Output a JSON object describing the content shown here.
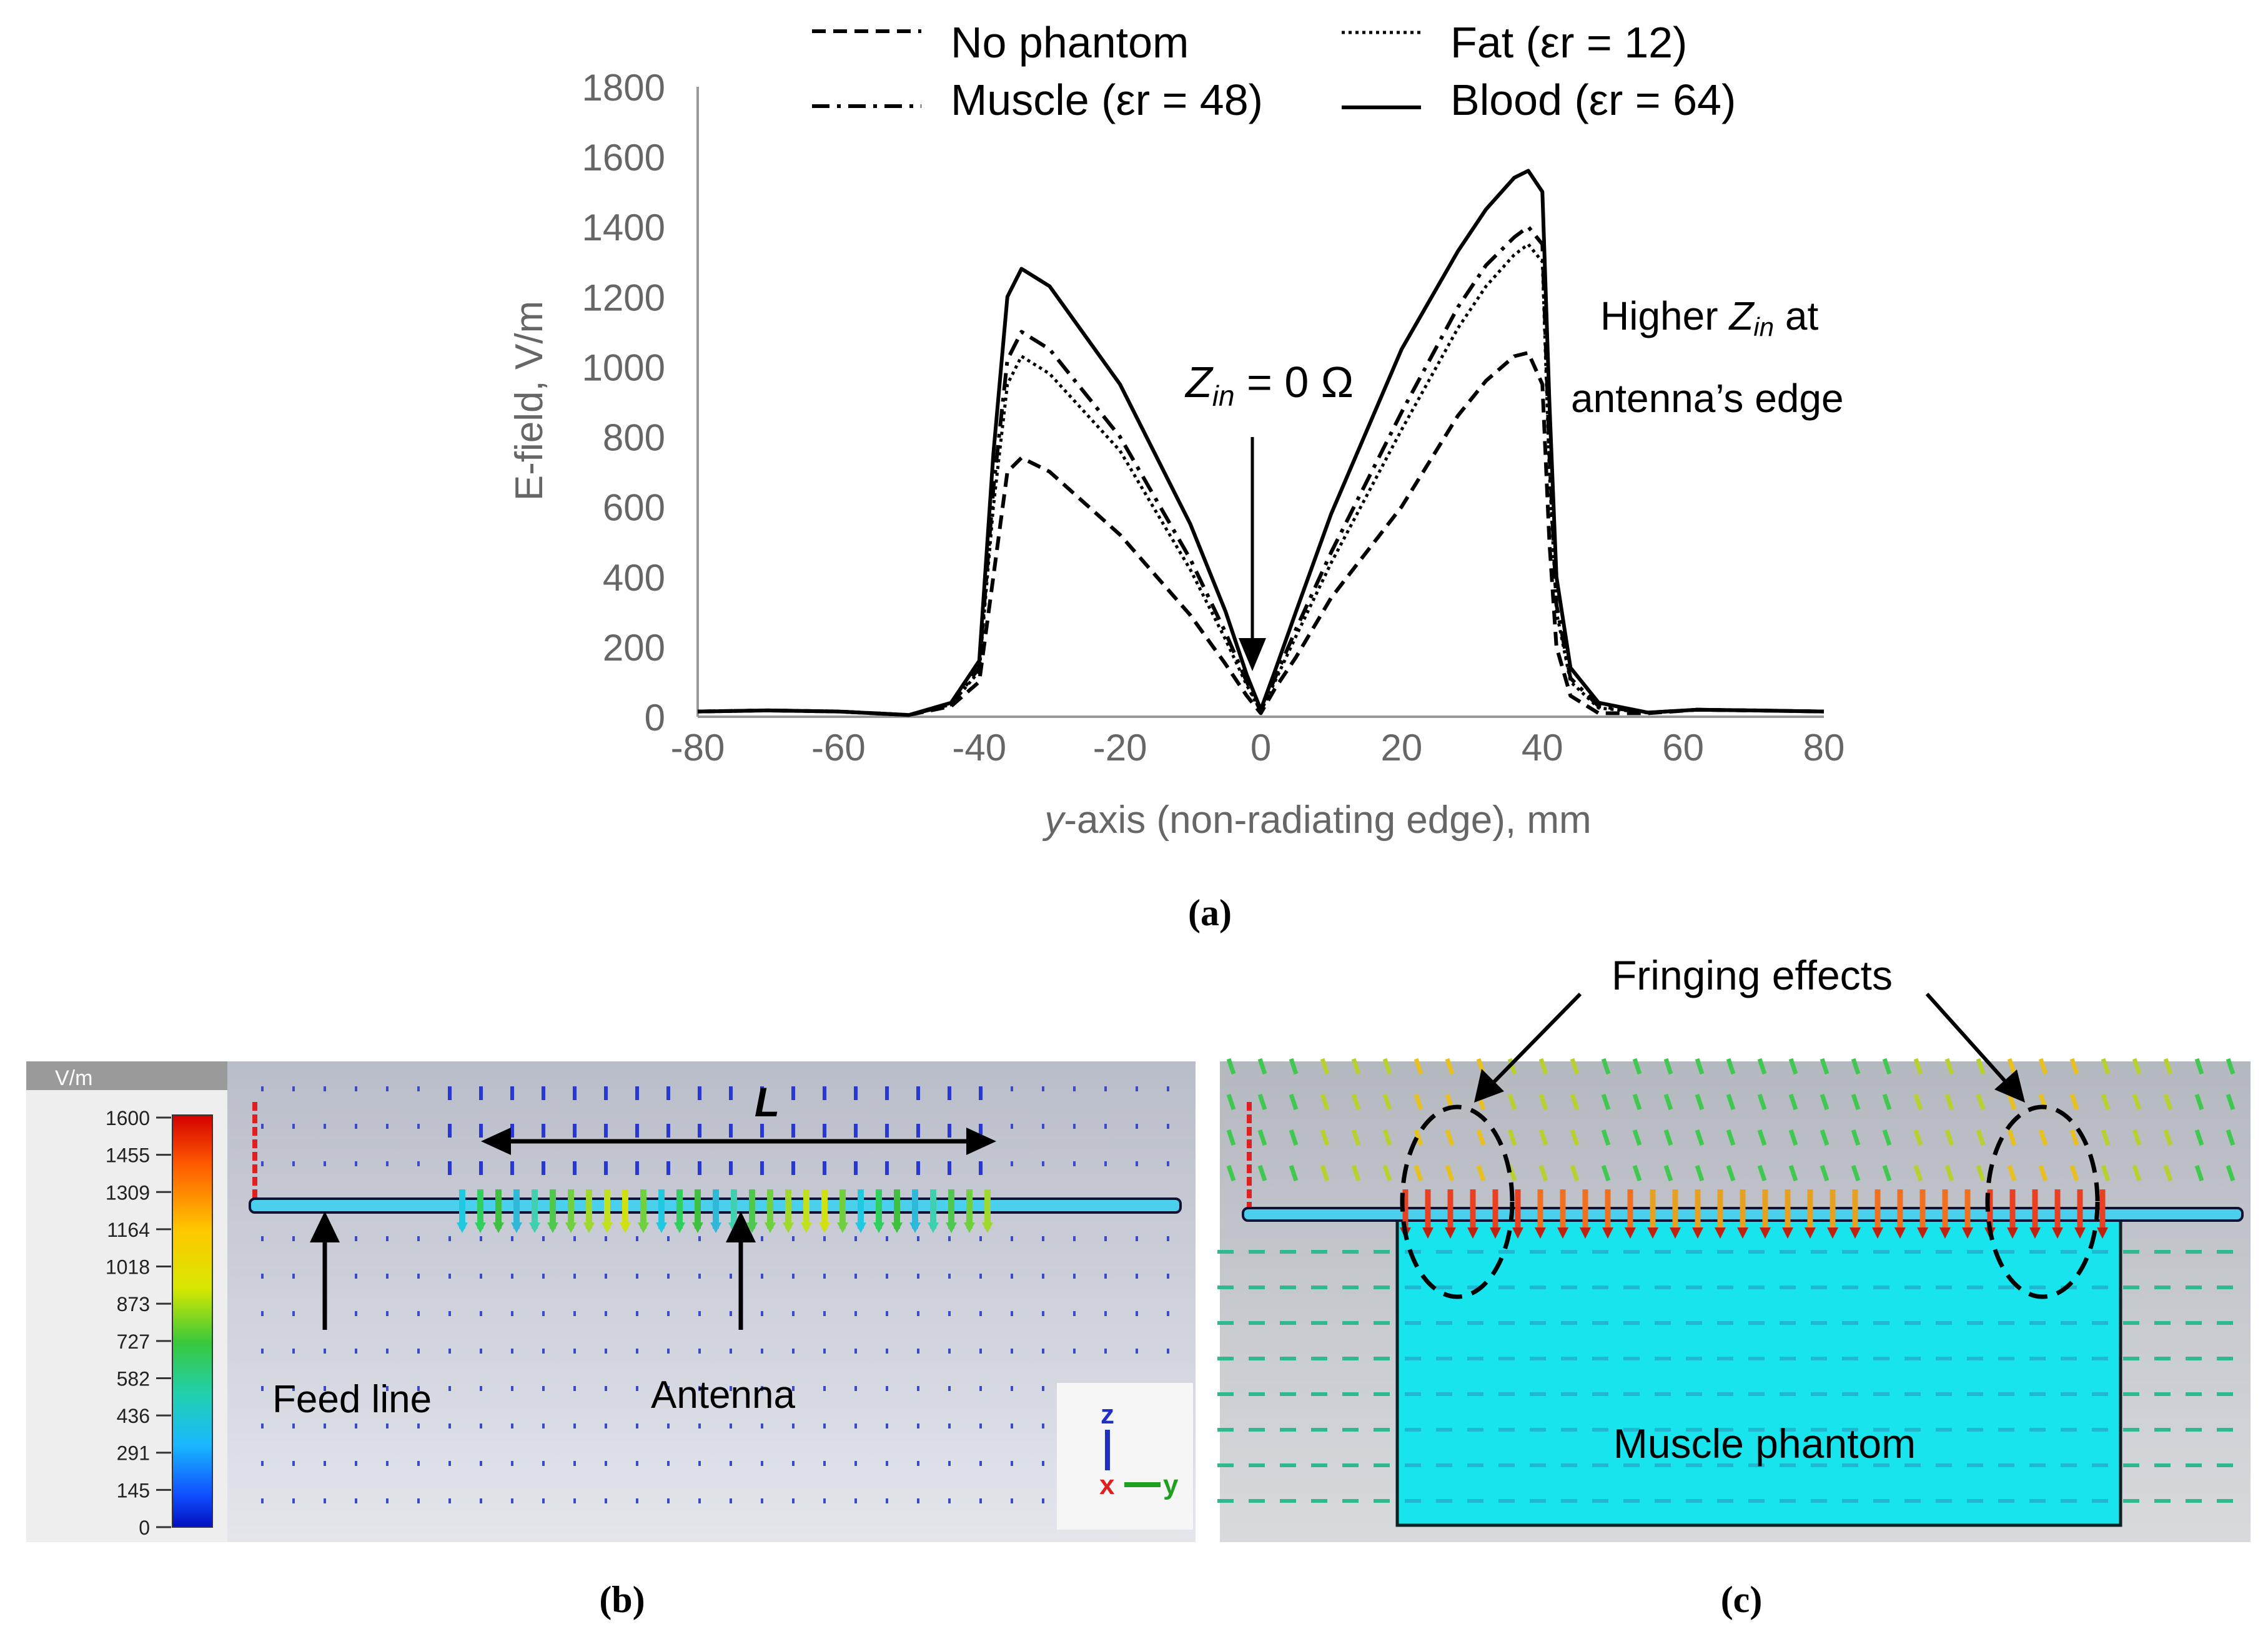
{
  "chart_data": {
    "type": "line",
    "xlabel_italic": "y",
    "xlabel_rest": "-axis (non-radiating edge), mm",
    "ylabel": "E-field, V/m",
    "xlim": [
      -80,
      80
    ],
    "ylim": [
      0,
      1800
    ],
    "x_ticks": [
      "-80",
      "-60",
      "-40",
      "-20",
      "0",
      "20",
      "40",
      "60",
      "80"
    ],
    "y_ticks": [
      "0",
      "200",
      "400",
      "600",
      "800",
      "1000",
      "1200",
      "1400",
      "1600",
      "1800"
    ],
    "legend": {
      "no_phantom": "No phantom",
      "fat": "Fat (εr = 12)",
      "muscle": "Muscle (εr = 48)",
      "blood": "Blood (εr = 64)"
    },
    "series": [
      {
        "name": "No phantom",
        "style": "dashed",
        "points": [
          [
            -80,
            15
          ],
          [
            -70,
            18
          ],
          [
            -60,
            15
          ],
          [
            -50,
            5
          ],
          [
            -44,
            30
          ],
          [
            -40,
            100
          ],
          [
            -38,
            400
          ],
          [
            -36,
            700
          ],
          [
            -34,
            740
          ],
          [
            -30,
            700
          ],
          [
            -20,
            520
          ],
          [
            -10,
            290
          ],
          [
            -5,
            150
          ],
          [
            -2,
            60
          ],
          [
            0,
            10
          ],
          [
            2,
            80
          ],
          [
            5,
            170
          ],
          [
            10,
            340
          ],
          [
            20,
            600
          ],
          [
            28,
            860
          ],
          [
            32,
            960
          ],
          [
            36,
            1030
          ],
          [
            38,
            1040
          ],
          [
            40,
            950
          ],
          [
            41,
            500
          ],
          [
            42,
            200
          ],
          [
            44,
            60
          ],
          [
            48,
            10
          ],
          [
            55,
            10
          ],
          [
            62,
            20
          ],
          [
            70,
            18
          ],
          [
            80,
            15
          ]
        ]
      },
      {
        "name": "Fat (εr = 12)",
        "style": "dotted",
        "points": [
          [
            -80,
            15
          ],
          [
            -70,
            18
          ],
          [
            -60,
            15
          ],
          [
            -50,
            5
          ],
          [
            -44,
            35
          ],
          [
            -40,
            130
          ],
          [
            -38,
            600
          ],
          [
            -36,
            950
          ],
          [
            -34,
            1030
          ],
          [
            -30,
            980
          ],
          [
            -20,
            760
          ],
          [
            -10,
            420
          ],
          [
            -5,
            220
          ],
          [
            -2,
            90
          ],
          [
            0,
            15
          ],
          [
            2,
            100
          ],
          [
            5,
            230
          ],
          [
            10,
            440
          ],
          [
            20,
            820
          ],
          [
            28,
            1110
          ],
          [
            32,
            1230
          ],
          [
            36,
            1320
          ],
          [
            38,
            1350
          ],
          [
            40,
            1300
          ],
          [
            41,
            700
          ],
          [
            42,
            300
          ],
          [
            44,
            100
          ],
          [
            48,
            25
          ],
          [
            55,
            12
          ],
          [
            62,
            20
          ],
          [
            70,
            18
          ],
          [
            80,
            15
          ]
        ]
      },
      {
        "name": "Muscle (εr = 48)",
        "style": "dashdot",
        "points": [
          [
            -80,
            15
          ],
          [
            -70,
            18
          ],
          [
            -60,
            15
          ],
          [
            -50,
            5
          ],
          [
            -44,
            35
          ],
          [
            -40,
            140
          ],
          [
            -38,
            650
          ],
          [
            -36,
            1020
          ],
          [
            -34,
            1100
          ],
          [
            -30,
            1050
          ],
          [
            -20,
            800
          ],
          [
            -10,
            450
          ],
          [
            -5,
            240
          ],
          [
            -2,
            100
          ],
          [
            0,
            15
          ],
          [
            2,
            110
          ],
          [
            5,
            250
          ],
          [
            10,
            470
          ],
          [
            20,
            870
          ],
          [
            28,
            1170
          ],
          [
            32,
            1290
          ],
          [
            36,
            1370
          ],
          [
            38,
            1400
          ],
          [
            40,
            1350
          ],
          [
            41,
            750
          ],
          [
            42,
            320
          ],
          [
            44,
            110
          ],
          [
            48,
            30
          ],
          [
            55,
            12
          ],
          [
            62,
            20
          ],
          [
            70,
            18
          ],
          [
            80,
            15
          ]
        ]
      },
      {
        "name": "Blood (εr = 64)",
        "style": "solid",
        "points": [
          [
            -80,
            15
          ],
          [
            -70,
            18
          ],
          [
            -60,
            15
          ],
          [
            -50,
            5
          ],
          [
            -44,
            40
          ],
          [
            -40,
            160
          ],
          [
            -38,
            750
          ],
          [
            -36,
            1200
          ],
          [
            -34,
            1280
          ],
          [
            -30,
            1230
          ],
          [
            -20,
            950
          ],
          [
            -10,
            550
          ],
          [
            -5,
            300
          ],
          [
            -2,
            120
          ],
          [
            0,
            20
          ],
          [
            2,
            130
          ],
          [
            5,
            300
          ],
          [
            10,
            580
          ],
          [
            20,
            1050
          ],
          [
            28,
            1330
          ],
          [
            32,
            1450
          ],
          [
            36,
            1540
          ],
          [
            38,
            1560
          ],
          [
            40,
            1500
          ],
          [
            41,
            900
          ],
          [
            42,
            400
          ],
          [
            44,
            140
          ],
          [
            48,
            40
          ],
          [
            55,
            12
          ],
          [
            62,
            20
          ],
          [
            70,
            18
          ],
          [
            80,
            15
          ]
        ]
      }
    ],
    "annotations": {
      "zin_z": "Z",
      "zin_sub": "in",
      "zin_rest": " = 0 Ω",
      "higher_pre": "Higher ",
      "higher_z": "Z",
      "higher_sub": "in",
      "higher_post": " at",
      "higher_line2": "antenna’s edge"
    }
  },
  "captions": {
    "a": "(a)",
    "b": "(b)",
    "c": "(c)"
  },
  "panel_b": {
    "unit": "V/m",
    "scale_values": [
      "1600",
      "1455",
      "1309",
      "1164",
      "1018",
      "873",
      "727",
      "582",
      "436",
      "291",
      "145",
      "0"
    ],
    "label_L": "L",
    "feed_line": "Feed line",
    "antenna": "Antenna",
    "axis_z": "z",
    "axis_x": "x",
    "axis_y": "y"
  },
  "panel_c": {
    "fringing": "Fringing effects",
    "phantom": "Muscle phantom"
  },
  "colors": {
    "line": "#000000",
    "axis_text": "#666666",
    "sim_background": "#c6c9d3",
    "phantom": "#17e4ec",
    "arrow_blue": "#2838d8"
  }
}
